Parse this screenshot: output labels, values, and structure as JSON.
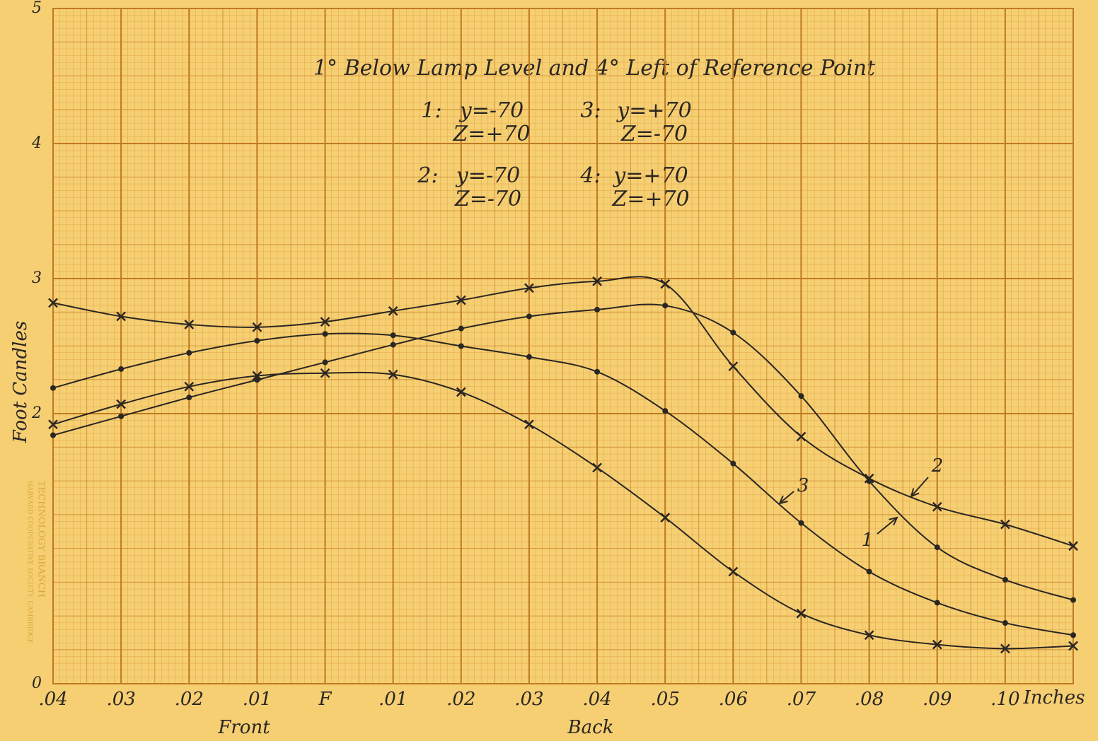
{
  "chart_data": {
    "type": "line",
    "title": "1° Below Lamp Level and 4° Left of Reference Point",
    "x_label": "Inches",
    "y_label": "Foot Candles",
    "x_side_labels": [
      "Front",
      "Back"
    ],
    "stamp": [
      "TECHNOLOGY BRANCH",
      "HARVARD COOPERATIVE SOCIETY, CAMBRIDGE"
    ],
    "x": [
      -0.04,
      -0.03,
      -0.02,
      -0.01,
      0,
      0.01,
      0.02,
      0.03,
      0.04,
      0.05,
      0.06,
      0.07,
      0.08,
      0.09,
      0.1,
      0.11
    ],
    "xlim": [
      -0.04,
      0.11
    ],
    "xticks": [
      {
        "value": -0.04,
        "label": ".04"
      },
      {
        "value": -0.03,
        "label": ".03"
      },
      {
        "value": -0.02,
        "label": ".02"
      },
      {
        "value": -0.01,
        "label": ".01"
      },
      {
        "value": 0,
        "label": "F"
      },
      {
        "value": 0.01,
        "label": ".01"
      },
      {
        "value": 0.02,
        "label": ".02"
      },
      {
        "value": 0.03,
        "label": ".03"
      },
      {
        "value": 0.04,
        "label": ".04"
      },
      {
        "value": 0.05,
        "label": ".05"
      },
      {
        "value": 0.06,
        "label": ".06"
      },
      {
        "value": 0.07,
        "label": ".07"
      },
      {
        "value": 0.08,
        "label": ".08"
      },
      {
        "value": 0.09,
        "label": ".09"
      },
      {
        "value": 0.1,
        "label": ".10"
      }
    ],
    "ylim": [
      0,
      5
    ],
    "yticks": [
      0,
      2,
      3,
      4,
      5
    ],
    "grid": true,
    "color": "#2a2622",
    "series": [
      {
        "name": "1",
        "legend_label": "1:",
        "legend_text": [
          "y=-70",
          "Z=+70"
        ],
        "marker": "dot",
        "values": [
          1.84,
          1.98,
          2.12,
          2.25,
          2.38,
          2.51,
          2.63,
          2.72,
          2.77,
          2.8,
          2.6,
          2.13,
          1.5,
          1.01,
          0.77,
          0.62
        ]
      },
      {
        "name": "2",
        "legend_label": "2:",
        "legend_text": [
          "y=-70",
          "Z=-70"
        ],
        "marker": "x",
        "values": [
          2.82,
          2.72,
          2.66,
          2.64,
          2.68,
          2.76,
          2.84,
          2.93,
          2.98,
          2.96,
          2.35,
          1.83,
          1.52,
          1.31,
          1.18,
          1.02
        ]
      },
      {
        "name": "3",
        "legend_label": "3:",
        "legend_text": [
          "y=+70",
          "Z=-70"
        ],
        "marker": "dot",
        "values": [
          2.19,
          2.33,
          2.45,
          2.54,
          2.59,
          2.58,
          2.5,
          2.42,
          2.31,
          2.02,
          1.63,
          1.19,
          0.83,
          0.6,
          0.45,
          0.36
        ]
      },
      {
        "name": "4",
        "legend_label": "4:",
        "legend_text": [
          "y=+70",
          "Z=+70"
        ],
        "marker": "x",
        "values": [
          1.92,
          2.07,
          2.2,
          2.28,
          2.3,
          2.29,
          2.16,
          1.92,
          1.6,
          1.23,
          0.83,
          0.52,
          0.36,
          0.29,
          0.26,
          0.28
        ]
      }
    ]
  }
}
